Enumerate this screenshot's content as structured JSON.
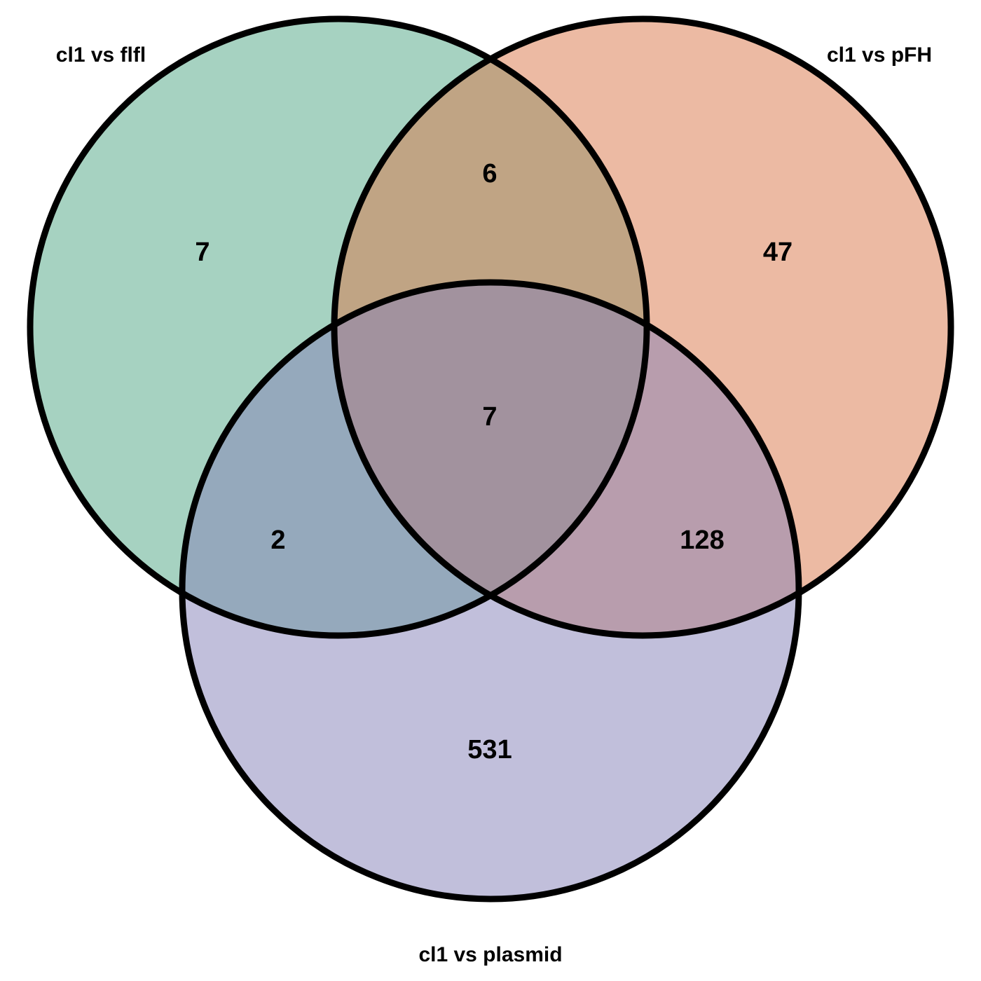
{
  "sets": [
    {
      "id": "A",
      "label": "cl1 vs flfl",
      "color": "#4ea584"
    },
    {
      "id": "B",
      "label": "cl1 vs pFH",
      "color": "#da7548"
    },
    {
      "id": "C",
      "label": "cl1 vs plasmid",
      "color": "#8380b7"
    }
  ],
  "regions": {
    "a_only": "7",
    "b_only": "47",
    "c_only": "531",
    "ab": "6",
    "ac": "2",
    "bc": "128",
    "abc": "7"
  }
}
